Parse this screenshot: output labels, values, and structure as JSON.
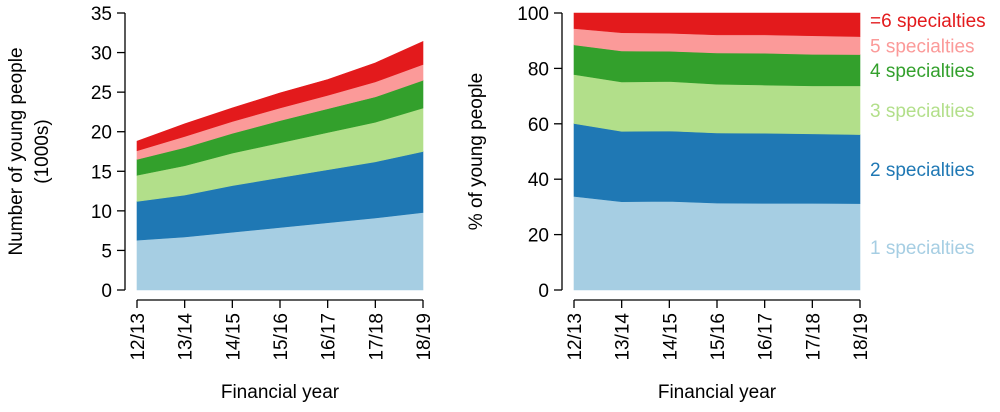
{
  "chart_data": [
    {
      "type": "area",
      "stacked": true,
      "x": [
        "12/13",
        "13/14",
        "14/15",
        "15/16",
        "16/17",
        "17/18",
        "18/19"
      ],
      "xlabel": "Financial year",
      "ylabel": [
        "Number of young people",
        "(1000s)"
      ],
      "ylim": [
        0,
        35
      ],
      "yticks": [
        0,
        5,
        10,
        15,
        20,
        25,
        30,
        35
      ],
      "grid": false,
      "series": [
        {
          "key": "s1",
          "values": [
            6.3,
            6.7,
            7.3,
            7.9,
            8.5,
            9.1,
            9.8
          ],
          "color": "#a6cee3"
        },
        {
          "key": "s2",
          "values": [
            4.9,
            5.3,
            5.9,
            6.3,
            6.7,
            7.1,
            7.7
          ],
          "color": "#1f78b4"
        },
        {
          "key": "s3",
          "values": [
            3.3,
            3.7,
            4.1,
            4.4,
            4.7,
            5.0,
            5.5
          ],
          "color": "#b2df8a"
        },
        {
          "key": "s4",
          "values": [
            2.0,
            2.3,
            2.5,
            2.8,
            3.0,
            3.2,
            3.5
          ],
          "color": "#33a02c"
        },
        {
          "key": "s5",
          "values": [
            1.1,
            1.4,
            1.5,
            1.6,
            1.7,
            1.9,
            2.0
          ],
          "color": "#fb9a99"
        },
        {
          "key": "s6",
          "values": [
            1.2,
            1.6,
            1.7,
            1.9,
            2.0,
            2.4,
            2.9
          ],
          "color": "#e31a1c"
        }
      ]
    },
    {
      "type": "area",
      "stacked": true,
      "x": [
        "12/13",
        "13/14",
        "14/15",
        "15/16",
        "16/17",
        "17/18",
        "18/19"
      ],
      "xlabel": "Financial year",
      "ylabel": "% of young people",
      "ylim": [
        0,
        100
      ],
      "yticks": [
        0,
        20,
        40,
        60,
        80,
        100
      ],
      "grid": false,
      "legend_placement": "right",
      "series": [
        {
          "key": "s1",
          "name": "1 specialties",
          "values": [
            33.8,
            31.9,
            32.0,
            31.4,
            31.3,
            31.3,
            31.2
          ],
          "color": "#a6cee3"
        },
        {
          "key": "s2",
          "name": "2 specialties",
          "values": [
            26.3,
            25.4,
            25.4,
            25.3,
            25.3,
            25.1,
            24.9
          ],
          "color": "#1f78b4"
        },
        {
          "key": "s3",
          "name": "3 specialties",
          "values": [
            17.7,
            17.8,
            17.9,
            17.6,
            17.4,
            17.3,
            17.6
          ],
          "color": "#b2df8a"
        },
        {
          "key": "s4",
          "name": "4 specialties",
          "values": [
            10.7,
            11.2,
            10.9,
            11.3,
            11.5,
            11.4,
            11.3
          ],
          "color": "#33a02c"
        },
        {
          "key": "s5",
          "name": "5 specialties",
          "values": [
            5.9,
            6.6,
            6.5,
            6.5,
            6.6,
            6.7,
            6.5
          ],
          "color": "#fb9a99"
        },
        {
          "key": "s6",
          "name": "=6 specialties",
          "values": [
            5.6,
            7.1,
            7.3,
            7.9,
            7.9,
            8.2,
            8.5
          ],
          "color": "#e31a1c"
        }
      ]
    }
  ]
}
